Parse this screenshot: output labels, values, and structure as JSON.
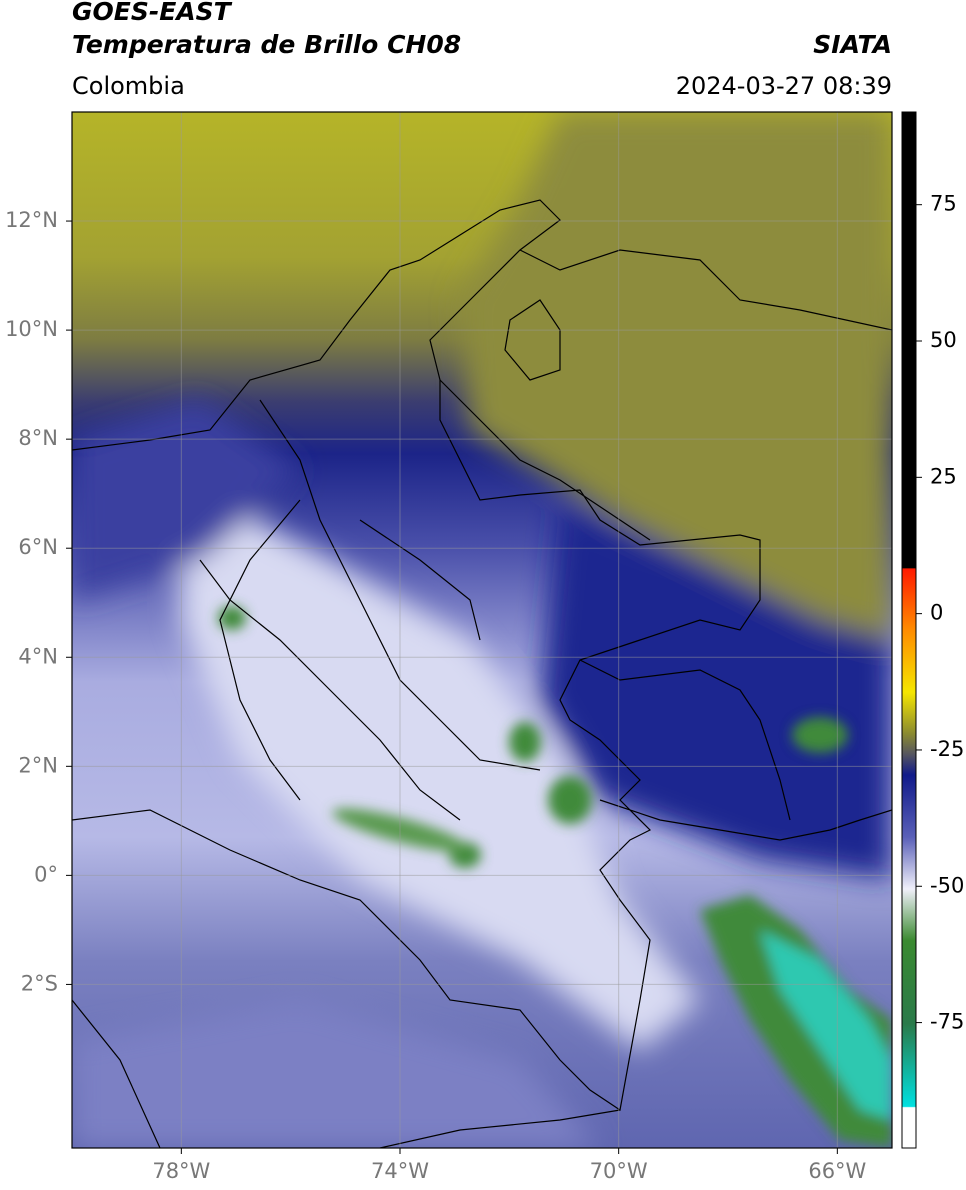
{
  "header": {
    "title": "GOES-EAST",
    "subtitle": "Temperatura de Brillo CH08",
    "source": "SIATA",
    "region": "Colombia",
    "datetime": "2024-03-27 08:39"
  },
  "map": {
    "xlim": [
      -80,
      -65
    ],
    "ylim": [
      -5,
      14
    ],
    "xticks": [
      {
        "value": -78,
        "label": "78°W"
      },
      {
        "value": -74,
        "label": "74°W"
      },
      {
        "value": -70,
        "label": "70°W"
      },
      {
        "value": -66,
        "label": "66°W"
      }
    ],
    "yticks": [
      {
        "value": 12,
        "label": "12°N"
      },
      {
        "value": 10,
        "label": "10°N"
      },
      {
        "value": 8,
        "label": "8°N"
      },
      {
        "value": 6,
        "label": "6°N"
      },
      {
        "value": 4,
        "label": "4°N"
      },
      {
        "value": 2,
        "label": "2°N"
      },
      {
        "value": 0,
        "label": "0°"
      },
      {
        "value": -2,
        "label": "2°S"
      }
    ],
    "grid": true
  },
  "colorbar": {
    "lim": [
      -98,
      92
    ],
    "ticks": [
      75,
      50,
      25,
      0,
      -25,
      -50,
      -75
    ]
  }
}
